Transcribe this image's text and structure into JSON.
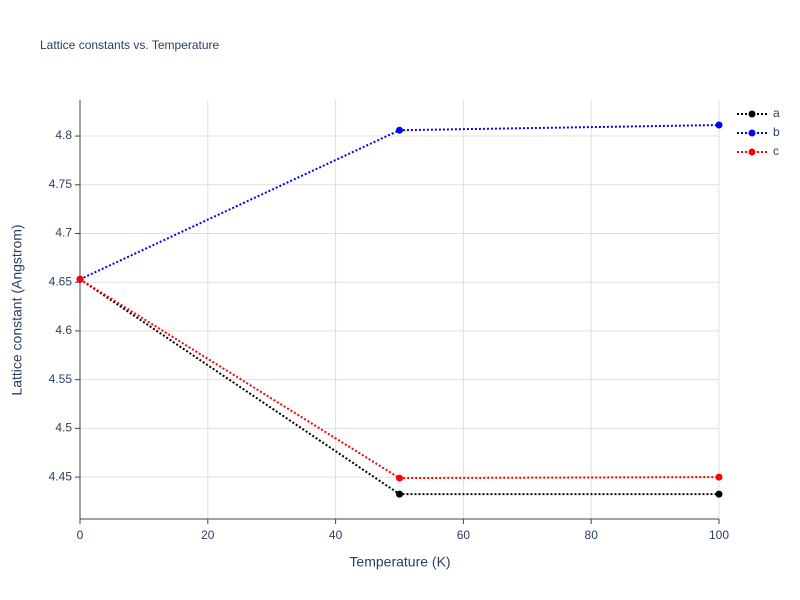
{
  "chart_data": {
    "type": "line",
    "title": "Lattice constants vs. Temperature",
    "x_label": "Temperature (K)",
    "y_label": "Lattice constant (Angstrom)",
    "x": [
      0,
      50,
      100
    ],
    "series": [
      {
        "name": "a",
        "color": "#000000",
        "values": [
          4.653,
          4.4325,
          4.4325
        ]
      },
      {
        "name": "b",
        "color": "#0000ff",
        "values": [
          4.653,
          4.806,
          4.8113
        ]
      },
      {
        "name": "c",
        "color": "#ff0000",
        "values": [
          4.653,
          4.449,
          4.45
        ]
      }
    ],
    "xlim": [
      0,
      100
    ],
    "xticks": [
      0,
      20,
      40,
      60,
      80,
      100
    ],
    "ylim": [
      4.407,
      4.837
    ],
    "yticks": [
      4.45,
      4.5,
      4.55,
      4.6,
      4.65,
      4.7,
      4.75,
      4.8
    ],
    "grid": true,
    "legend": "top-right"
  }
}
